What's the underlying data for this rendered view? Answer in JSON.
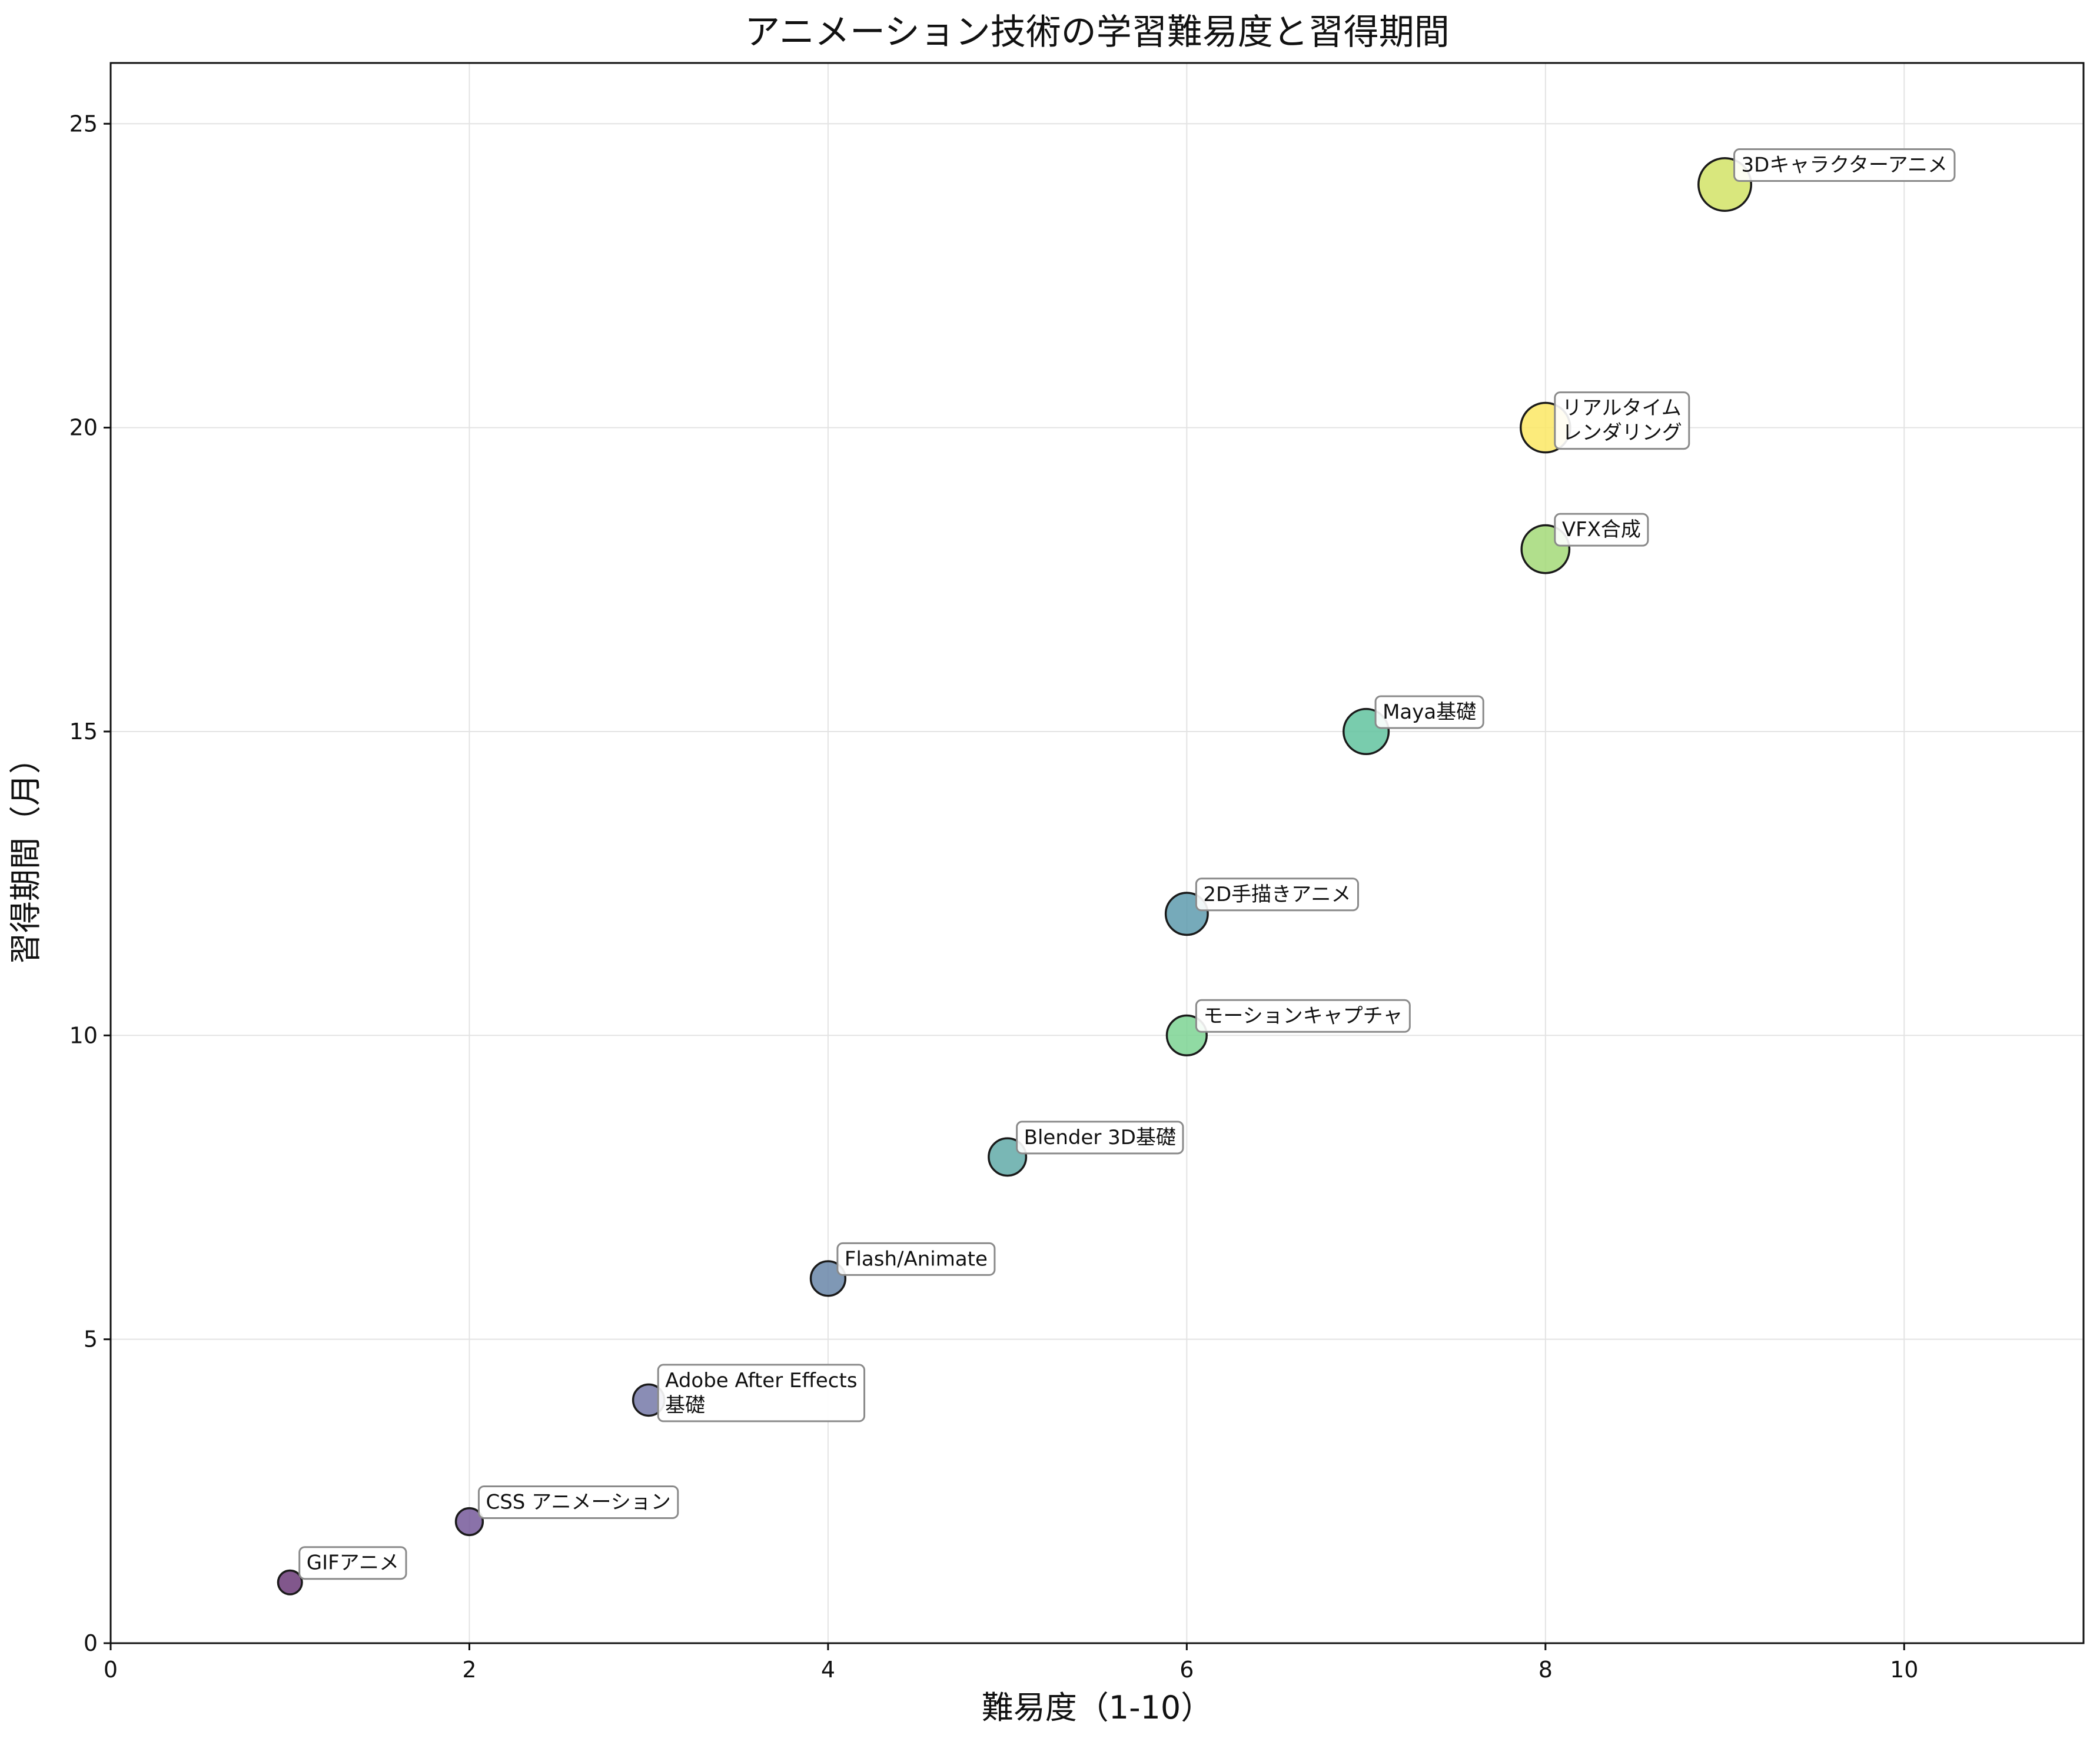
{
  "chart_data": {
    "type": "scatter",
    "title": "アニメーション技術の学習難易度と習得期間",
    "xlabel": "難易度（1-10）",
    "ylabel": "習得期間（月）",
    "xlim": [
      0,
      11
    ],
    "ylim": [
      0,
      26
    ],
    "xticks": [
      0,
      2,
      4,
      6,
      8,
      10
    ],
    "yticks": [
      0,
      5,
      10,
      15,
      20,
      25
    ],
    "grid": true,
    "colormap": "viridis",
    "points": [
      {
        "label": "GIFアニメ",
        "x": 1,
        "y": 1,
        "color": "#6b3a78"
      },
      {
        "label": "CSS アニメーション",
        "x": 2,
        "y": 2,
        "color": "#75599a"
      },
      {
        "label": "Adobe After Effects\n基礎",
        "x": 3,
        "y": 4,
        "color": "#7679a8"
      },
      {
        "label": "Flash/Animate",
        "x": 4,
        "y": 6,
        "color": "#6986a8"
      },
      {
        "label": "Blender 3D基礎",
        "x": 5,
        "y": 8,
        "color": "#62aaa8"
      },
      {
        "label": "2D手描きアニメ",
        "x": 6,
        "y": 12,
        "color": "#5e9bae"
      },
      {
        "label": "モーションキャプチャ",
        "x": 6,
        "y": 10,
        "color": "#7dd493"
      },
      {
        "label": "Maya基礎",
        "x": 7,
        "y": 15,
        "color": "#62c39f"
      },
      {
        "label": "VFX合成",
        "x": 8,
        "y": 18,
        "color": "#a3d978"
      },
      {
        "label": "リアルタイム\nレンダリング",
        "x": 8,
        "y": 20,
        "color": "#fbe864"
      },
      {
        "label": "3Dキャラクターアニメ",
        "x": 9,
        "y": 24,
        "color": "#d2e366"
      }
    ]
  }
}
